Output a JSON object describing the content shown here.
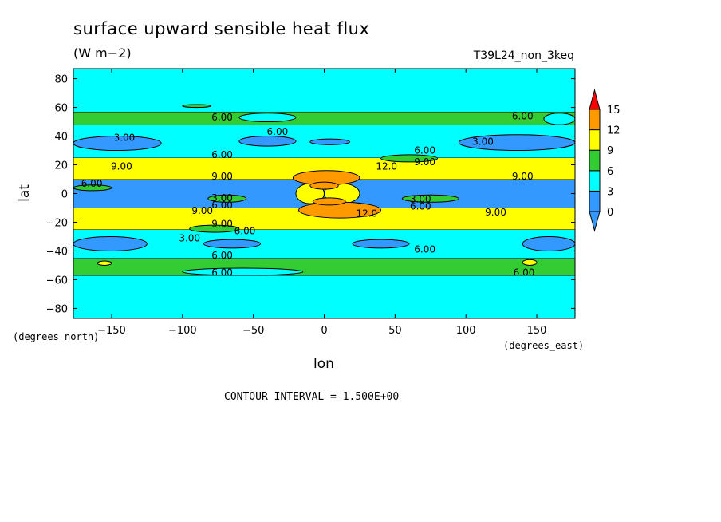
{
  "chart_data": {
    "type": "heatmap",
    "title": "surface upward sensible heat flux",
    "units": "(W m−2)",
    "run_label": "T39L24_non_3keq",
    "xlabel": "lon",
    "ylabel": "lat",
    "x_unit_label": "(degrees_east)",
    "y_unit_label": "(degrees_north)",
    "contour_interval_text": "CONTOUR INTERVAL = 1.500E+00",
    "xlim": [
      -177,
      177
    ],
    "ylim": [
      -87,
      87
    ],
    "x_ticks": [
      -150,
      -100,
      -50,
      0,
      50,
      100,
      150
    ],
    "y_ticks": [
      -80,
      -60,
      -40,
      -20,
      0,
      20,
      40,
      60,
      80
    ],
    "x_tick_labels": [
      "−150",
      "−100",
      "−50",
      "0",
      "50",
      "100",
      "150"
    ],
    "y_tick_labels": [
      "−80",
      "−60",
      "−40",
      "−20",
      "0",
      "20",
      "40",
      "60",
      "80"
    ],
    "colorbar": {
      "levels": [
        0,
        3,
        6,
        9,
        12,
        15
      ],
      "labels": [
        "0",
        "3",
        "6",
        "9",
        "12",
        "15"
      ],
      "colors": [
        "#3399ff",
        "#00ffff",
        "#33cc33",
        "#ffff00",
        "#ff9900",
        "#ff0000"
      ],
      "bin_colors": [
        "#3399ff",
        "#00ffff",
        "#33cc33",
        "#ffff00",
        "#ff9900"
      ],
      "under_color": "#3399ff",
      "over_color": "#ff0000"
    },
    "zonal_bands": [
      {
        "lat": [
          -87,
          -57
        ],
        "value": 4.5
      },
      {
        "lat": [
          -57,
          -45
        ],
        "value": 7
      },
      {
        "lat": [
          -45,
          -25
        ],
        "value": 4
      },
      {
        "lat": [
          -25,
          -10
        ],
        "value": 10
      },
      {
        "lat": [
          -10,
          10
        ],
        "value": 2
      },
      {
        "lat": [
          10,
          25
        ],
        "value": 10
      },
      {
        "lat": [
          25,
          48
        ],
        "value": 4
      },
      {
        "lat": [
          48,
          57
        ],
        "value": 7
      },
      {
        "lat": [
          57,
          87
        ],
        "value": 4.5
      }
    ],
    "regions": [
      {
        "name": "cyan-gap NH 55W",
        "value": 4.5,
        "lon": [
          -60,
          -20
        ],
        "lat": [
          50,
          56
        ]
      },
      {
        "name": "cyan-gap NH 165E",
        "value": 4.5,
        "lon": [
          155,
          177
        ],
        "lat": [
          48,
          56
        ]
      },
      {
        "name": "cyan-gap SH 55W",
        "value": 4.5,
        "lon": [
          -100,
          -15
        ],
        "lat": [
          -57,
          -52
        ]
      },
      {
        "name": "blue NH 150W",
        "value": 1.5,
        "lon": [
          -177,
          -115
        ],
        "lat": [
          30,
          40
        ]
      },
      {
        "name": "blue NH 35W",
        "value": 1.5,
        "lon": [
          -60,
          -20
        ],
        "lat": [
          33,
          40
        ]
      },
      {
        "name": "blue NH 5E",
        "value": 1.5,
        "lon": [
          -10,
          18
        ],
        "lat": [
          34,
          38
        ]
      },
      {
        "name": "blue NH 130E",
        "value": 1.5,
        "lon": [
          95,
          177
        ],
        "lat": [
          30,
          41
        ]
      },
      {
        "name": "blue SH 155W",
        "value": 1.5,
        "lon": [
          -177,
          -125
        ],
        "lat": [
          -40,
          -30
        ]
      },
      {
        "name": "blue SH 70W",
        "value": 1.5,
        "lon": [
          -85,
          -45
        ],
        "lat": [
          -38,
          -32
        ]
      },
      {
        "name": "blue SH 40E",
        "value": 1.5,
        "lon": [
          20,
          60
        ],
        "lat": [
          -38,
          -32
        ]
      },
      {
        "name": "blue SH 160E",
        "value": 1.5,
        "lon": [
          140,
          177
        ],
        "lat": [
          -40,
          -30
        ]
      },
      {
        "name": "green NH 45E",
        "value": 7,
        "lon": [
          40,
          80
        ],
        "lat": [
          22,
          27
        ]
      },
      {
        "name": "green SH 80W",
        "value": 7,
        "lon": [
          -95,
          -60
        ],
        "lat": [
          -27,
          -22
        ]
      },
      {
        "name": "green eq 75W",
        "value": 7,
        "lon": [
          -82,
          -55
        ],
        "lat": [
          -6,
          -1
        ]
      },
      {
        "name": "green eq 70E",
        "value": 7,
        "lon": [
          55,
          95
        ],
        "lat": [
          -6,
          -1
        ]
      },
      {
        "name": "green eq 160W",
        "value": 7,
        "lon": [
          -177,
          -150
        ],
        "lat": [
          2,
          6
        ]
      },
      {
        "name": "yellow eq west",
        "value": 10,
        "lon": [
          -20,
          0
        ],
        "lat": [
          -7,
          7
        ]
      },
      {
        "name": "yellow eq east",
        "value": 10,
        "lon": [
          0,
          25
        ],
        "lat": [
          -7,
          7
        ]
      },
      {
        "name": "orange NH 0E",
        "value": 13,
        "lon": [
          -22,
          25
        ],
        "lat": [
          6,
          16
        ]
      },
      {
        "name": "orange NH 0E cap",
        "value": 13,
        "lon": [
          -10,
          10
        ],
        "lat": [
          3,
          8
        ]
      },
      {
        "name": "orange SH 5E",
        "value": 13,
        "lon": [
          -18,
          40
        ],
        "lat": [
          -17,
          -6
        ]
      },
      {
        "name": "orange SH 5E cap",
        "value": 13,
        "lon": [
          -8,
          15
        ],
        "lat": [
          -8,
          -3
        ]
      },
      {
        "name": "yellow spot SH 120W",
        "value": 10,
        "lon": [
          -160,
          -150
        ],
        "lat": [
          -50,
          -47
        ]
      },
      {
        "name": "yellow spot SH 130E",
        "value": 10,
        "lon": [
          140,
          150
        ],
        "lat": [
          -50,
          -46
        ]
      },
      {
        "name": "green islands NH 60N",
        "value": 7,
        "lon": [
          -100,
          -80
        ],
        "lat": [
          60,
          62
        ]
      }
    ],
    "contour_labels": [
      {
        "text": "6.00",
        "lon": -72,
        "lat": 53
      },
      {
        "text": "6.00",
        "lon": -33,
        "lat": 43
      },
      {
        "text": "6.00",
        "lon": 140,
        "lat": 54
      },
      {
        "text": "3.00",
        "lon": -141,
        "lat": 39
      },
      {
        "text": "3.00",
        "lon": 112,
        "lat": 36
      },
      {
        "text": "6.00",
        "lon": -72,
        "lat": 27
      },
      {
        "text": "6.00",
        "lon": 71,
        "lat": 30
      },
      {
        "text": "9.00",
        "lon": -143,
        "lat": 19
      },
      {
        "text": "9.00",
        "lon": -72,
        "lat": 12
      },
      {
        "text": "12.0",
        "lon": 44,
        "lat": 19
      },
      {
        "text": "9.00",
        "lon": 71,
        "lat": 22
      },
      {
        "text": "9.00",
        "lon": 140,
        "lat": 12
      },
      {
        "text": "6.00",
        "lon": -164,
        "lat": 7
      },
      {
        "text": "3.00",
        "lon": -72,
        "lat": -3
      },
      {
        "text": "6.00",
        "lon": -72,
        "lat": -8
      },
      {
        "text": "3.00",
        "lon": 68,
        "lat": -4
      },
      {
        "text": "6.00",
        "lon": 68,
        "lat": -9
      },
      {
        "text": "9.00",
        "lon": -86,
        "lat": -12
      },
      {
        "text": "12.0",
        "lon": 30,
        "lat": -14
      },
      {
        "text": "9.00",
        "lon": 121,
        "lat": -13
      },
      {
        "text": "9.00",
        "lon": -72,
        "lat": -21
      },
      {
        "text": "6.00",
        "lon": -56,
        "lat": -26
      },
      {
        "text": "3.00",
        "lon": -95,
        "lat": -31
      },
      {
        "text": "6.00",
        "lon": 71,
        "lat": -39
      },
      {
        "text": "6.00",
        "lon": -72,
        "lat": -43
      },
      {
        "text": "6.00",
        "lon": -72,
        "lat": -55
      },
      {
        "text": "6.00",
        "lon": 141,
        "lat": -55
      }
    ]
  }
}
